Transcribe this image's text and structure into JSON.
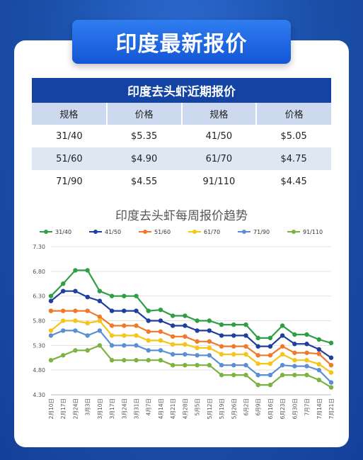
{
  "header": {
    "title": "印度最新报价"
  },
  "price_table": {
    "title": "印度去头虾近期报价",
    "headers": [
      "规格",
      "价格",
      "规格",
      "价格"
    ],
    "rows": [
      [
        "31/40",
        "$5.35",
        "41/50",
        "$5.05"
      ],
      [
        "51/60",
        "$4.90",
        "61/70",
        "$4.75"
      ],
      [
        "71/90",
        "$4.55",
        "91/110",
        "$4.45"
      ]
    ]
  },
  "chart_data": {
    "type": "line",
    "title": "印度去头虾每周报价趋势",
    "xlabel": "",
    "ylabel": "",
    "ylim": [
      4.3,
      7.3
    ],
    "yticks": [
      "7.30",
      "6.80",
      "6.30",
      "5.80",
      "5.30",
      "4.80",
      "4.30"
    ],
    "grid": true,
    "legend": "top",
    "categories": [
      "2月10日",
      "2月17日",
      "2月24日",
      "3月3日",
      "3月10日",
      "3月17日",
      "3月24日",
      "3月31日",
      "4月7日",
      "4月14日",
      "4月21日",
      "4月28日",
      "5月5日",
      "5月12日",
      "5月19日",
      "5月26日",
      "6月2日",
      "6月9日",
      "6月16日",
      "6月23日",
      "6月30日",
      "7月7日",
      "7月14日",
      "7月21日"
    ],
    "series": [
      {
        "name": "31/40",
        "color": "#2ea043",
        "values": [
          6.3,
          6.55,
          6.82,
          6.82,
          6.4,
          6.3,
          6.3,
          6.3,
          6.0,
          6.02,
          5.9,
          5.9,
          5.8,
          5.8,
          5.72,
          5.72,
          5.72,
          5.45,
          5.45,
          5.7,
          5.52,
          5.52,
          5.42,
          5.35
        ]
      },
      {
        "name": "41/50",
        "color": "#1f3f9e",
        "values": [
          6.2,
          6.4,
          6.4,
          6.28,
          6.2,
          6.0,
          6.0,
          6.0,
          5.8,
          5.8,
          5.7,
          5.7,
          5.6,
          5.6,
          5.5,
          5.5,
          5.5,
          5.28,
          5.28,
          5.5,
          5.33,
          5.33,
          5.22,
          5.05
        ]
      },
      {
        "name": "51/60",
        "color": "#f07a2a",
        "values": [
          6.0,
          6.0,
          6.0,
          6.0,
          5.88,
          5.7,
          5.7,
          5.7,
          5.58,
          5.58,
          5.48,
          5.48,
          5.38,
          5.38,
          5.28,
          5.28,
          5.28,
          5.1,
          5.1,
          5.28,
          5.15,
          5.15,
          5.13,
          4.9
        ]
      },
      {
        "name": "61/70",
        "color": "#f5c518",
        "values": [
          5.6,
          5.8,
          5.8,
          5.75,
          5.8,
          5.5,
          5.5,
          5.5,
          5.4,
          5.4,
          5.32,
          5.32,
          5.25,
          5.25,
          5.12,
          5.12,
          5.12,
          4.93,
          4.93,
          5.12,
          5.0,
          5.0,
          4.92,
          4.75
        ]
      },
      {
        "name": "71/90",
        "color": "#5b8fd4",
        "values": [
          5.5,
          5.6,
          5.6,
          5.5,
          5.6,
          5.3,
          5.3,
          5.3,
          5.2,
          5.2,
          5.12,
          5.12,
          5.1,
          5.1,
          4.9,
          4.9,
          4.9,
          4.7,
          4.7,
          4.9,
          4.88,
          4.88,
          4.8,
          4.55
        ]
      },
      {
        "name": "91/110",
        "color": "#7cb342",
        "values": [
          5.0,
          5.1,
          5.2,
          5.2,
          5.3,
          5.0,
          5.0,
          5.0,
          5.0,
          5.0,
          4.9,
          4.9,
          4.9,
          4.9,
          4.7,
          4.7,
          4.7,
          4.5,
          4.5,
          4.7,
          4.7,
          4.7,
          4.6,
          4.45
        ]
      }
    ]
  }
}
